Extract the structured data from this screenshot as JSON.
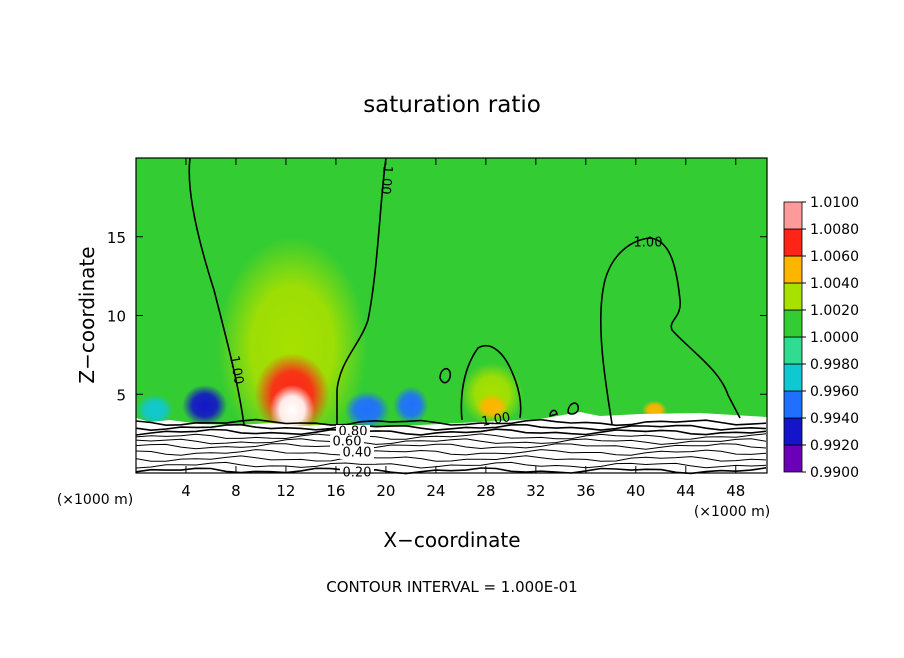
{
  "chart_data": {
    "type": "contour",
    "title": "saturation ratio",
    "xlabel": "X−coordinate",
    "ylabel": "Z−coordinate",
    "x_unit_label": "(×1000 m)",
    "footer": "CONTOUR INTERVAL = 1.000E-01",
    "xlim": [
      0,
      50.5
    ],
    "ylim": [
      0,
      20
    ],
    "xticks": [
      4,
      8,
      12,
      16,
      20,
      24,
      28,
      32,
      36,
      40,
      44,
      48
    ],
    "yticks": [
      5,
      10,
      15
    ],
    "background_value": 1.0,
    "colorbar": {
      "ticks": [
        {
          "value": 0.99,
          "label": "0.9900"
        },
        {
          "value": 0.992,
          "label": "0.9920"
        },
        {
          "value": 0.994,
          "label": "0.9940"
        },
        {
          "value": 0.996,
          "label": "0.9960"
        },
        {
          "value": 0.998,
          "label": "0.9980"
        },
        {
          "value": 1.0,
          "label": "1.0000"
        },
        {
          "value": 1.002,
          "label": "1.0020"
        },
        {
          "value": 1.004,
          "label": "1.0040"
        },
        {
          "value": 1.006,
          "label": "1.0060"
        },
        {
          "value": 1.008,
          "label": "1.0080"
        },
        {
          "value": 1.01,
          "label": "1.0100"
        }
      ],
      "colors": [
        "#6a00b8",
        "#1414c8",
        "#2070ff",
        "#10c8d0",
        "#30dc90",
        "#33cc33",
        "#a8e000",
        "#ffb400",
        "#ff2418",
        "#ff9a9a"
      ]
    },
    "field": [
      {
        "x": 12.5,
        "z": 8,
        "rx": 6,
        "rz": 7,
        "value": 1.002
      },
      {
        "x": 12.5,
        "z": 5,
        "rx": 3,
        "rz": 2.6,
        "value": 1.006
      },
      {
        "x": 12.5,
        "z": 4,
        "rx": 1.8,
        "rz": 1.6,
        "value": 1.01
      },
      {
        "x": 5.5,
        "z": 4.3,
        "rx": 1.8,
        "rz": 1.3,
        "value": 0.993
      },
      {
        "x": 1.5,
        "z": 4,
        "rx": 1.5,
        "rz": 1,
        "value": 0.996
      },
      {
        "x": 18.5,
        "z": 4,
        "rx": 1.8,
        "rz": 1.2,
        "value": 0.994
      },
      {
        "x": 22,
        "z": 4.3,
        "rx": 1.4,
        "rz": 1.2,
        "value": 0.994
      },
      {
        "x": 28.5,
        "z": 5,
        "rx": 2.5,
        "rz": 2,
        "value": 1.002
      },
      {
        "x": 28.5,
        "z": 4.2,
        "rx": 1.3,
        "rz": 0.8,
        "value": 1.005
      },
      {
        "x": 41.5,
        "z": 4,
        "rx": 1,
        "rz": 0.6,
        "value": 1.004
      }
    ],
    "contours": [
      {
        "value": 1.0,
        "label": "1.00"
      },
      {
        "value": 0.8,
        "label": "0.80"
      },
      {
        "value": 0.6,
        "label": "0.60"
      },
      {
        "value": 0.4,
        "label": "0.40"
      },
      {
        "value": 0.2,
        "label": "0.20"
      }
    ]
  }
}
